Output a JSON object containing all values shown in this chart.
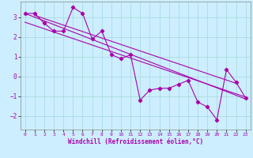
{
  "xlabel": "Windchill (Refroidissement éolien,°C)",
  "background_color": "#cceeff",
  "grid_color": "#aadddd",
  "line_color": "#aa00aa",
  "xlim": [
    -0.5,
    23.5
  ],
  "ylim": [
    -2.7,
    3.8
  ],
  "xticks": [
    0,
    1,
    2,
    3,
    4,
    5,
    6,
    7,
    8,
    9,
    10,
    11,
    12,
    13,
    14,
    15,
    16,
    17,
    18,
    19,
    20,
    21,
    22,
    23
  ],
  "yticks": [
    -2,
    -1,
    0,
    1,
    2,
    3
  ],
  "main_x": [
    0,
    1,
    2,
    3,
    4,
    5,
    6,
    7,
    8,
    9,
    10,
    11,
    12,
    13,
    14,
    15,
    16,
    17,
    18,
    19,
    20,
    21,
    22,
    23
  ],
  "main_y": [
    3.2,
    3.2,
    2.7,
    2.3,
    2.3,
    3.5,
    3.2,
    1.9,
    2.3,
    1.1,
    0.9,
    1.1,
    -1.2,
    -0.7,
    -0.6,
    -0.6,
    -0.4,
    -0.2,
    -1.3,
    -1.55,
    -2.2,
    0.35,
    -0.3,
    -1.1
  ],
  "trend1_x": [
    0,
    23
  ],
  "trend1_y": [
    3.2,
    -1.15
  ],
  "trend2_x": [
    0,
    23
  ],
  "trend2_y": [
    2.75,
    -1.05
  ],
  "trend3_x": [
    1,
    22
  ],
  "trend3_y": [
    3.1,
    -0.35
  ],
  "figsize": [
    3.2,
    2.0
  ],
  "dpi": 100
}
